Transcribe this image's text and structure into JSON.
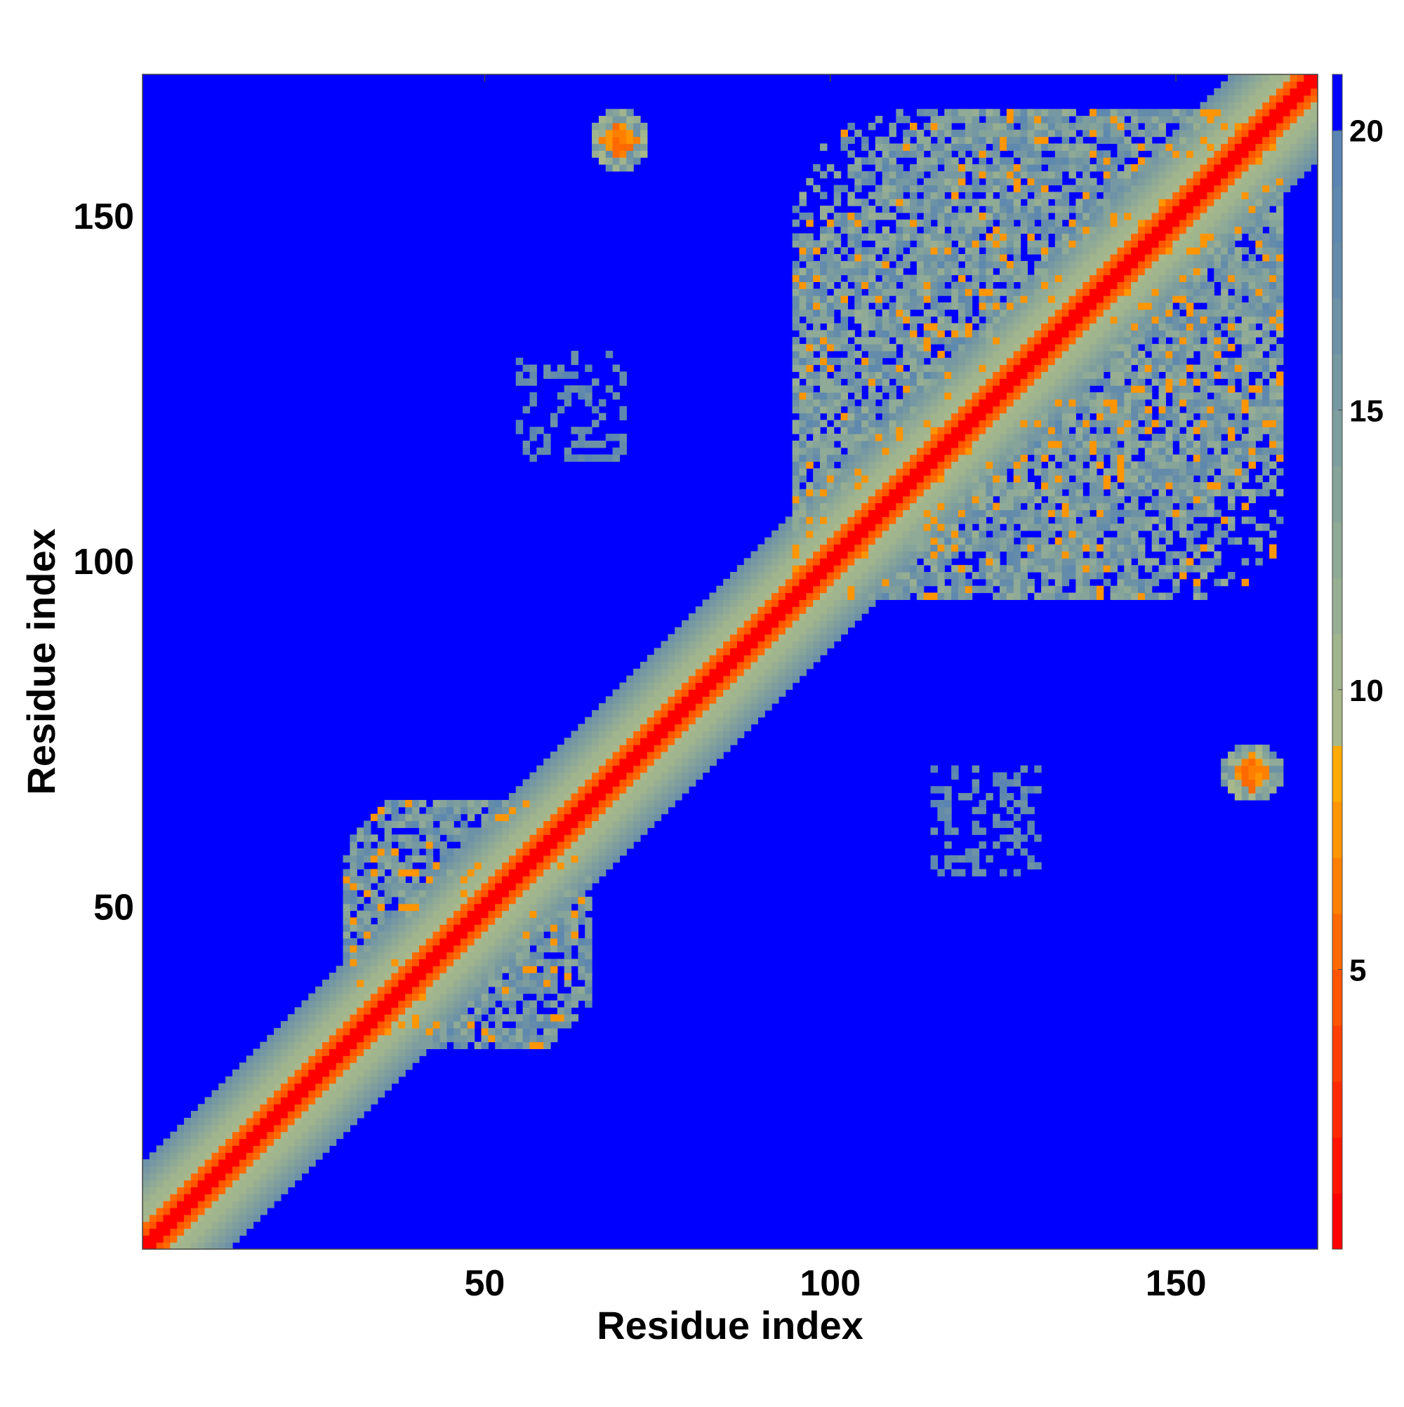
{
  "chart_data": {
    "type": "heatmap",
    "title": "",
    "xlabel": "Residue index",
    "ylabel": "Residue index",
    "n_residues": 170,
    "xlim": [
      0.5,
      170.5
    ],
    "ylim": [
      0.5,
      170.5
    ],
    "x_ticks": [
      50,
      100,
      150
    ],
    "y_ticks": [
      50,
      100,
      150
    ],
    "colorbar": {
      "min": 0,
      "max": 21,
      "ticks": [
        5,
        10,
        15,
        20
      ],
      "levels": [
        {
          "from": 0,
          "to": 1,
          "color": "#ff0000"
        },
        {
          "from": 1,
          "to": 2,
          "color": "#ff1400"
        },
        {
          "from": 2,
          "to": 3,
          "color": "#ff2a00"
        },
        {
          "from": 3,
          "to": 4,
          "color": "#ff3f00"
        },
        {
          "from": 4,
          "to": 5,
          "color": "#ff5400"
        },
        {
          "from": 5,
          "to": 6,
          "color": "#ff6a00"
        },
        {
          "from": 6,
          "to": 7,
          "color": "#ff8000"
        },
        {
          "from": 7,
          "to": 8,
          "color": "#ff9500"
        },
        {
          "from": 8,
          "to": 9,
          "color": "#ffaa00"
        },
        {
          "from": 9,
          "to": 10,
          "color": "#a8b88a"
        },
        {
          "from": 10,
          "to": 11,
          "color": "#a0b48e"
        },
        {
          "from": 11,
          "to": 12,
          "color": "#98ae92"
        },
        {
          "from": 12,
          "to": 13,
          "color": "#8faa96"
        },
        {
          "from": 13,
          "to": 14,
          "color": "#86a49a"
        },
        {
          "from": 14,
          "to": 15,
          "color": "#7e9e9e"
        },
        {
          "from": 15,
          "to": 16,
          "color": "#7698a2"
        },
        {
          "from": 16,
          "to": 17,
          "color": "#6d92a6"
        },
        {
          "from": 17,
          "to": 18,
          "color": "#648caa"
        },
        {
          "from": 18,
          "to": 19,
          "color": "#5e88ae"
        },
        {
          "from": 19,
          "to": 20,
          "color": "#5a84b2"
        },
        {
          "from": 20,
          "to": 21,
          "color": "#0000ff"
        }
      ]
    },
    "contact_regions": [
      {
        "name": "diagonal",
        "description_values": "distance ~0 on diagonal rising to ~20 about 12 residues off diagonal"
      },
      {
        "name": "n-terminal-domain",
        "i_range": [
          30,
          65
        ],
        "j_range": [
          30,
          65
        ],
        "mean_distance": 14
      },
      {
        "name": "c-terminal-domain",
        "i_range": [
          95,
          165
        ],
        "j_range": [
          95,
          165
        ],
        "mean_distance": 13
      },
      {
        "name": "contact-patch",
        "i_range": [
          66,
          73
        ],
        "j_range": [
          157,
          165
        ],
        "mean_distance": 7
      },
      {
        "name": "scattered-contacts",
        "i_range": [
          55,
          70
        ],
        "j_range": [
          115,
          130
        ],
        "mean_distance": 18
      }
    ]
  }
}
